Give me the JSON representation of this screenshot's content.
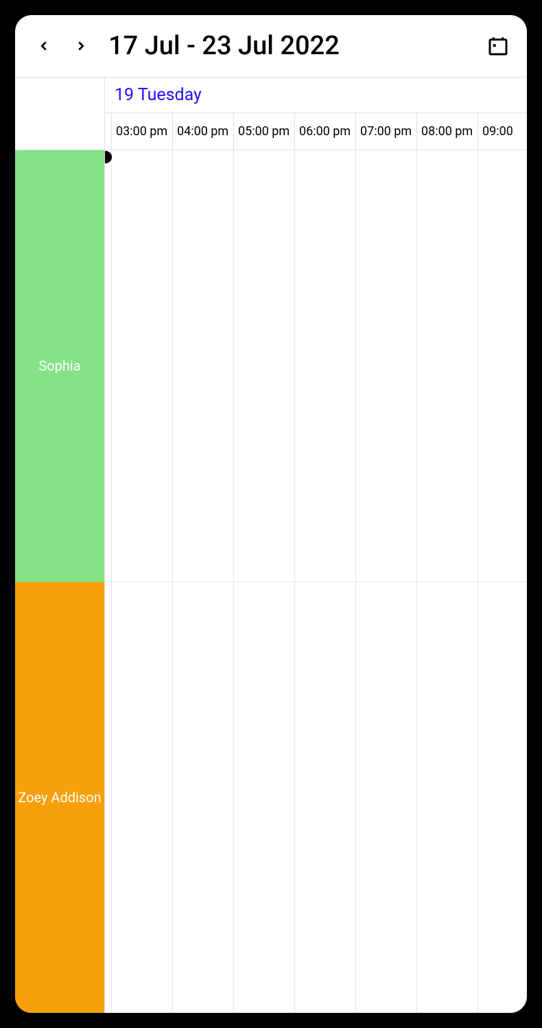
{
  "header": {
    "dateRange": "17 Jul - 23 Jul 2022"
  },
  "dayHeader": {
    "label": "19 Tuesday",
    "color": "#2010ff"
  },
  "timeSlots": {
    "offsetWidth": 10,
    "slotWidth": 89,
    "partialPrefix": "",
    "slots": [
      "03:00 pm",
      "04:00 pm",
      "05:00 pm",
      "06:00 pm",
      "07:00 pm",
      "08:00 pm",
      "09:00"
    ]
  },
  "resources": [
    {
      "name": "Sophia",
      "color": "#85e286"
    },
    {
      "name": "Zoey Addison",
      "color": "#f8a00b"
    }
  ],
  "colors": {
    "background": "#ffffff",
    "border": "#e0e0e0",
    "gridBorder": "#e5e5e5",
    "text": "#000000"
  }
}
